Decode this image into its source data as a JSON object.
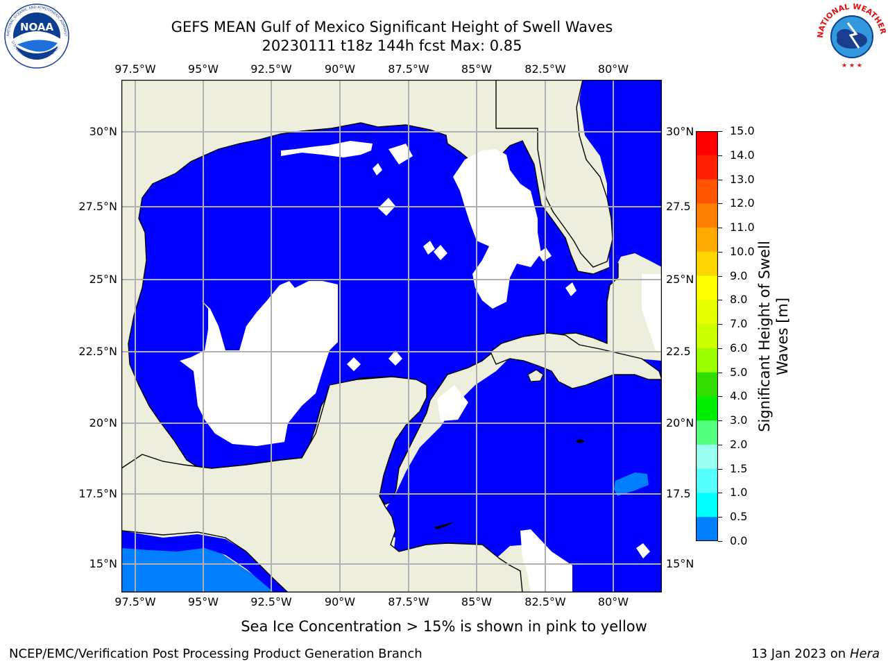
{
  "header": {
    "title_line1": "GEFS MEAN Gulf of Mexico Significant Height of Swell Waves",
    "title_line2": "20230111 t18z 144h fcst   Max: 0.85"
  },
  "logos": {
    "noaa": {
      "wordmark": "NOAA",
      "ring_text": "NATIONAL OCEANIC AND ATMOSPHERIC ADMINISTRATION",
      "bottom_text": "U.S. DEPARTMENT OF COMMERCE"
    },
    "nws": {
      "ring_text": "NATIONAL WEATHER SERVICE"
    }
  },
  "map": {
    "lon_labels": [
      "97.5°W",
      "95°W",
      "92.5°W",
      "90°W",
      "87.5°W",
      "85°W",
      "82.5°W",
      "80°W"
    ],
    "lat_labels_left": [
      "30°N",
      "27.5°N",
      "25°N",
      "22.5°N",
      "20°N",
      "17.5°N",
      "15°N"
    ],
    "lat_labels_right": [
      "30°N",
      "27.5",
      "25°N",
      "22.5",
      "20°N",
      "17.5",
      "15°N"
    ],
    "extent": {
      "lon_min": -98,
      "lon_max": -78.2,
      "lat_min": 14,
      "lat_max": 31.8
    },
    "max_value": 0.85,
    "colors": {
      "land": "#eeeedc",
      "ocean_low": "#0000ff",
      "ocean_mid": "#0080ff",
      "nodata": "#ffffff",
      "grid": "#b0b0b0"
    }
  },
  "colorbar": {
    "label": "Significant Height of Swell Waves [m]",
    "label_line1": "Significant Height of Swell",
    "label_line2": "Waves [m]",
    "ticks": [
      "15.0",
      "14.0",
      "13.0",
      "12.0",
      "11.0",
      "10.0",
      "9.0",
      "8.0",
      "7.0",
      "6.0",
      "5.0",
      "4.0",
      "3.0",
      "2.0",
      "1.5",
      "1.0",
      "0.5",
      "0.0"
    ],
    "colors": [
      "#ff0000",
      "#ff2000",
      "#ff5500",
      "#ff8000",
      "#ffaa00",
      "#ffd700",
      "#ffff00",
      "#e6ff00",
      "#ccff00",
      "#99ff00",
      "#33dd00",
      "#00ee00",
      "#55ff80",
      "#99ffee",
      "#55ffff",
      "#00ffff",
      "#0080ff",
      "#0000ff"
    ]
  },
  "note": "Sea Ice Concentration > 15% is shown in pink to yellow",
  "footer": {
    "left": "NCEP/EMC/Verification Post Processing Product Generation Branch",
    "right_prefix": "13 Jan 2023 on ",
    "right_host": "Hera"
  }
}
